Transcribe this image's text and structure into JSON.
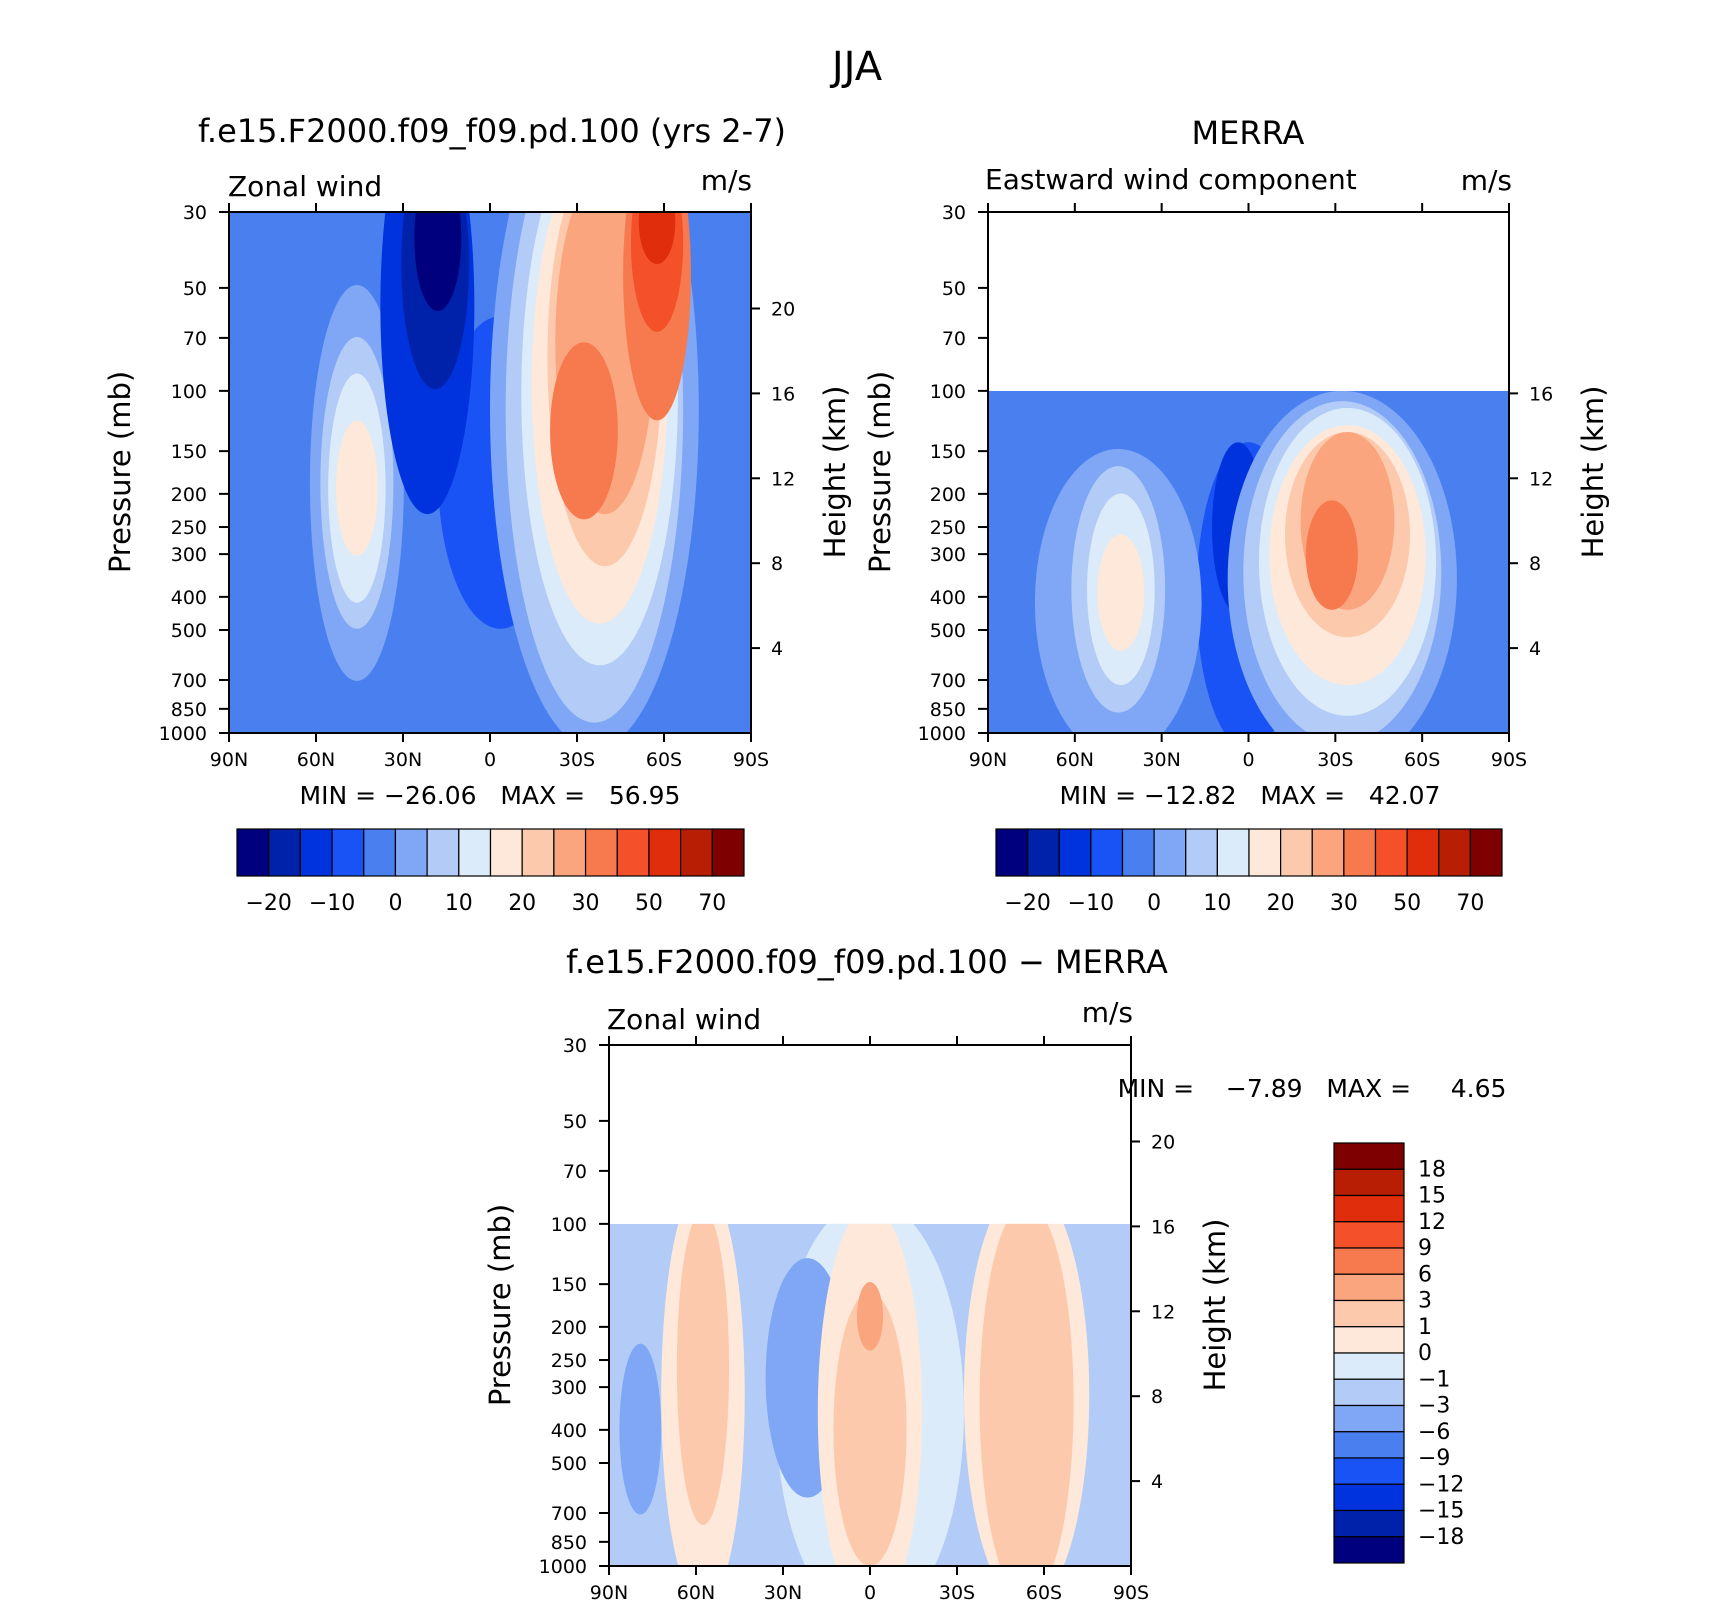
{
  "figure": {
    "title": "JJA"
  },
  "chart_data": [
    {
      "type": "heatmap",
      "title": "f.e15.F2000.f09_f09.pd.100 (yrs 2-7)",
      "left_label": "Zonal wind",
      "units": "m/s",
      "xlabel": "",
      "ylabel": "Pressure (mb)",
      "right_ylabel": "Height (km)",
      "x_ticks": [
        "90N",
        "60N",
        "30N",
        "0",
        "30S",
        "60S",
        "90S"
      ],
      "y_ticks": [
        30,
        50,
        70,
        100,
        150,
        200,
        250,
        300,
        400,
        500,
        700,
        850,
        1000
      ],
      "right_ticks": [
        20,
        16,
        12,
        8,
        4
      ],
      "ylim": [
        1000,
        30
      ],
      "y_scale": "log",
      "stats_text": "MIN = −26.06   MAX =   56.95",
      "min": -26.06,
      "max": 56.95,
      "levels": [
        -20,
        -15,
        -10,
        -5,
        0,
        5,
        10,
        15,
        20,
        25,
        30,
        40,
        50,
        60,
        70
      ],
      "colorbar_labels": [
        "−20",
        "−10",
        "0",
        "10",
        "20",
        "30",
        "50",
        "70"
      ],
      "features": [
        {
          "lat": 20,
          "p": 45,
          "value": -26
        },
        {
          "lat": 47,
          "p": 200,
          "value": 18
        },
        {
          "lat": -28,
          "p": 200,
          "value": 42
        },
        {
          "lat": -60,
          "p": 40,
          "value": 57
        }
      ]
    },
    {
      "type": "heatmap",
      "title": "MERRA",
      "left_label": "Eastward wind component",
      "units": "m/s",
      "xlabel": "",
      "ylabel": "Pressure (mb)",
      "right_ylabel": "Height (km)",
      "x_ticks": [
        "90N",
        "60N",
        "30N",
        "0",
        "30S",
        "60S",
        "90S"
      ],
      "y_ticks": [
        30,
        50,
        70,
        100,
        150,
        200,
        250,
        300,
        400,
        500,
        700,
        850,
        1000
      ],
      "right_ticks": [
        16,
        12,
        8,
        4
      ],
      "ylim": [
        1000,
        30
      ],
      "data_top_p": 100,
      "y_scale": "log",
      "stats_text": "MIN = −12.82   MAX =   42.07",
      "min": -12.82,
      "max": 42.07,
      "levels": [
        -20,
        -15,
        -10,
        -5,
        0,
        5,
        10,
        15,
        20,
        25,
        30,
        40,
        50,
        60,
        70
      ],
      "colorbar_labels": [
        "−20",
        "−10",
        "0",
        "10",
        "20",
        "30",
        "50",
        "70"
      ],
      "features": [
        {
          "lat": 45,
          "p": 200,
          "value": 18
        },
        {
          "lat": -30,
          "p": 200,
          "value": 42
        },
        {
          "lat": 10,
          "p": 120,
          "value": -12
        }
      ]
    },
    {
      "type": "heatmap",
      "title": "f.e15.F2000.f09_f09.pd.100 − MERRA",
      "left_label": "Zonal wind",
      "units": "m/s",
      "xlabel": "",
      "ylabel": "Pressure (mb)",
      "right_ylabel": "Height (km)",
      "x_ticks": [
        "90N",
        "60N",
        "30N",
        "0",
        "30S",
        "60S",
        "90S"
      ],
      "y_ticks": [
        30,
        50,
        70,
        100,
        150,
        200,
        250,
        300,
        400,
        500,
        700,
        850,
        1000
      ],
      "right_ticks": [
        20,
        16,
        12,
        8,
        4
      ],
      "ylim": [
        1000,
        30
      ],
      "data_top_p": 100,
      "y_scale": "log",
      "stats_text": "MIN =    −7.89   MAX =     4.65",
      "min": -7.89,
      "max": 4.65,
      "levels": [
        -18,
        -15,
        -12,
        -9,
        -6,
        -3,
        -1,
        0,
        1,
        3,
        6,
        9,
        12,
        15,
        18
      ],
      "colorbar_labels": [
        "18",
        "15",
        "12",
        "9",
        "6",
        "3",
        "1",
        "0",
        "−1",
        "−3",
        "−6",
        "−9",
        "−12",
        "−15",
        "−18"
      ]
    }
  ],
  "colors": {
    "palette16": [
      "#00007f",
      "#0022aa",
      "#0033dd",
      "#1a53f5",
      "#4a7ff0",
      "#7fa7f5",
      "#b2ccf7",
      "#dcebfa",
      "#fde8da",
      "#fcc9ad",
      "#faa57e",
      "#f77a4f",
      "#f4502a",
      "#e02e0c",
      "#b71e03",
      "#7f0000"
    ]
  }
}
